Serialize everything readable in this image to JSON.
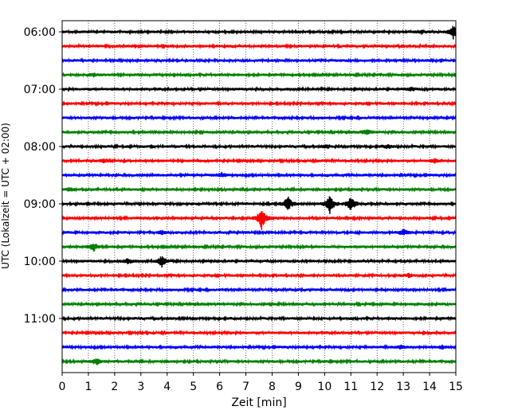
{
  "chart_data": {
    "type": "line",
    "title": "",
    "xlabel": "Zeit  [min]",
    "ylabel": "UTC (Lokalzeit = UTC + 02:00)",
    "xlim": [
      0,
      15
    ],
    "x_ticks": [
      "0",
      "1",
      "2",
      "3",
      "4",
      "5",
      "6",
      "7",
      "8",
      "9",
      "10",
      "11",
      "12",
      "13",
      "14",
      "15"
    ],
    "y_ticks": [
      "06:00",
      "07:00",
      "08:00",
      "09:00",
      "10:00",
      "11:00"
    ],
    "grid": "vertical dotted",
    "trace_interval_minutes": 15,
    "trace_colors": [
      "#000000",
      "#ff0000",
      "#0000ff",
      "#008000"
    ],
    "traces": [
      {
        "start": "06:00",
        "color": "#000000",
        "events": [
          {
            "x": 13.7,
            "amp": 2
          },
          {
            "x": 14.9,
            "amp": 8
          }
        ]
      },
      {
        "start": "06:15",
        "color": "#ff0000",
        "events": []
      },
      {
        "start": "06:30",
        "color": "#0000ff",
        "events": []
      },
      {
        "start": "06:45",
        "color": "#008000",
        "events": [
          {
            "x": 1.2,
            "amp": 2
          }
        ]
      },
      {
        "start": "07:00",
        "color": "#000000",
        "events": [
          {
            "x": 13.3,
            "amp": 2
          }
        ]
      },
      {
        "start": "07:15",
        "color": "#ff0000",
        "events": []
      },
      {
        "start": "07:30",
        "color": "#0000ff",
        "events": []
      },
      {
        "start": "07:45",
        "color": "#008000",
        "events": [
          {
            "x": 11.6,
            "amp": 3
          }
        ]
      },
      {
        "start": "08:00",
        "color": "#000000",
        "events": [
          {
            "x": 10.1,
            "amp": 2
          },
          {
            "x": 12.4,
            "amp": 2
          }
        ]
      },
      {
        "start": "08:15",
        "color": "#ff0000",
        "events": [
          {
            "x": 1.6,
            "amp": 2
          },
          {
            "x": 14.2,
            "amp": 2
          }
        ]
      },
      {
        "start": "08:30",
        "color": "#0000ff",
        "events": [
          {
            "x": 6.1,
            "amp": 3
          }
        ]
      },
      {
        "start": "08:45",
        "color": "#008000",
        "events": [
          {
            "x": 0.3,
            "amp": 2
          }
        ]
      },
      {
        "start": "09:00",
        "color": "#000000",
        "events": [
          {
            "x": 8.6,
            "amp": 9
          },
          {
            "x": 10.2,
            "amp": 12
          },
          {
            "x": 11.0,
            "amp": 9
          }
        ]
      },
      {
        "start": "09:15",
        "color": "#ff0000",
        "events": [
          {
            "x": 7.6,
            "amp": 14
          }
        ]
      },
      {
        "start": "09:30",
        "color": "#0000ff",
        "events": [
          {
            "x": 3.8,
            "amp": 2
          },
          {
            "x": 13.0,
            "amp": 4
          }
        ]
      },
      {
        "start": "09:45",
        "color": "#008000",
        "events": [
          {
            "x": 1.2,
            "amp": 5
          }
        ]
      },
      {
        "start": "10:00",
        "color": "#000000",
        "events": [
          {
            "x": 2.5,
            "amp": 3
          },
          {
            "x": 3.8,
            "amp": 7
          }
        ]
      },
      {
        "start": "10:15",
        "color": "#ff0000",
        "events": [
          {
            "x": 13.2,
            "amp": 2
          }
        ]
      },
      {
        "start": "10:30",
        "color": "#0000ff",
        "events": []
      },
      {
        "start": "10:45",
        "color": "#008000",
        "events": []
      },
      {
        "start": "11:00",
        "color": "#000000",
        "events": []
      },
      {
        "start": "11:15",
        "color": "#ff0000",
        "events": []
      },
      {
        "start": "11:30",
        "color": "#0000ff",
        "events": [
          {
            "x": 12.9,
            "amp": 2
          },
          {
            "x": 14.5,
            "amp": 2
          }
        ]
      },
      {
        "start": "11:45",
        "color": "#008000",
        "events": [
          {
            "x": 1.3,
            "amp": 4
          }
        ]
      }
    ]
  }
}
